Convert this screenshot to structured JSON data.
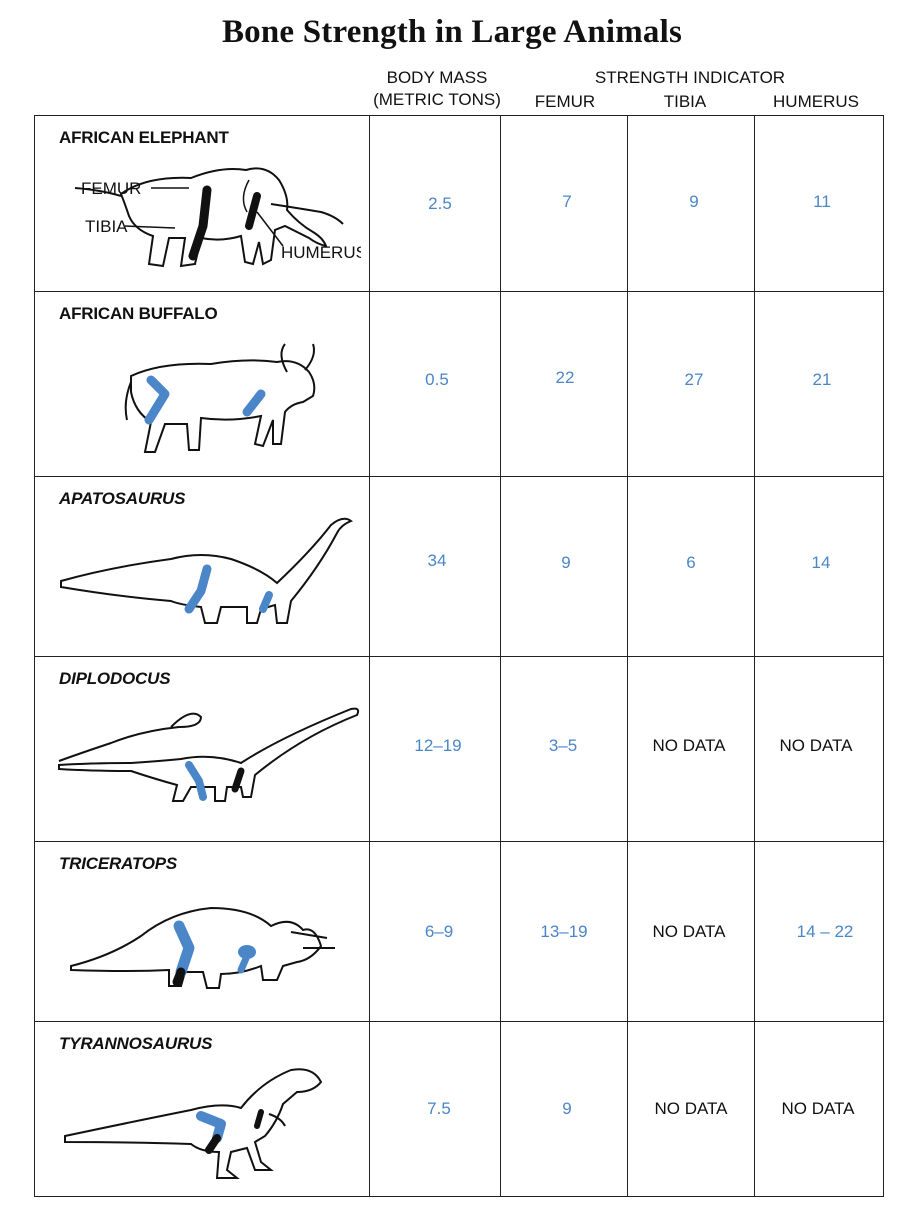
{
  "title": "Bone Strength in Large Animals",
  "headers": {
    "body_mass_line1": "BODY MASS",
    "body_mass_line2": "(METRIC TONS)",
    "strength_indicator": "STRENGTH INDICATOR",
    "femur": "FEMUR",
    "tibia": "TIBIA",
    "humerus": "HUMERUS"
  },
  "diagram_labels": {
    "femur": "FEMUR",
    "tibia": "TIBIA",
    "humerus": "HUMERUS"
  },
  "rows": [
    {
      "animal": "AFRICAN ELEPHANT",
      "italic": false,
      "icon": "elephant-illustration",
      "body_mass": "2.5",
      "femur": "7",
      "tibia": "9",
      "humerus": "11"
    },
    {
      "animal": "AFRICAN BUFFALO",
      "italic": false,
      "icon": "buffalo-illustration",
      "body_mass": "0.5",
      "femur": "22",
      "tibia": "27",
      "humerus": "21"
    },
    {
      "animal": "APATOSAURUS",
      "italic": true,
      "icon": "apatosaurus-illustration",
      "body_mass": "34",
      "femur": "9",
      "tibia": "6",
      "humerus": "14"
    },
    {
      "animal": "DIPLODOCUS",
      "italic": true,
      "icon": "diplodocus-illustration",
      "body_mass": "12–19",
      "femur": "3–5",
      "tibia": "NO DATA",
      "humerus": "NO DATA"
    },
    {
      "animal": "TRICERATOPS",
      "italic": true,
      "icon": "triceratops-illustration",
      "body_mass": "6–9",
      "femur": "13–19",
      "tibia": "NO DATA",
      "humerus": "14 – 22"
    },
    {
      "animal": "TYRANNOSAURUS",
      "italic": true,
      "icon": "tyrannosaurus-illustration",
      "body_mass": "7.5",
      "femur": "9",
      "tibia": "NO DATA",
      "humerus": "NO DATA"
    }
  ],
  "colors": {
    "value_text": "#4a86c8",
    "bone_highlight": "#4a86c8",
    "bone_dark": "#111111",
    "rule_lines": "#222222"
  }
}
